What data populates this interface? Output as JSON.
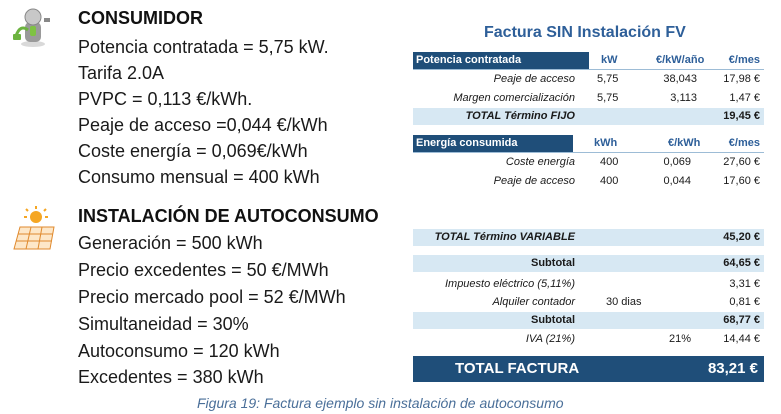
{
  "consumer": {
    "title": "CONSUMIDOR",
    "lines": [
      "Potencia contratada = 5,75 kW.",
      "Tarifa 2.0A",
      "PVPC = 0,113 €/kWh.",
      "Peaje de acceso =0,044 €/kWh",
      "Coste energía = 0,069€/kWh",
      "Consumo mensual = 400 kWh"
    ]
  },
  "autoconsumo": {
    "title": "INSTALACIÓN DE AUTOCONSUMO",
    "lines": [
      "Generación = 500 kWh",
      "Precio excedentes = 50 €/MWh",
      "Precio mercado pool = 52 €/MWh",
      "Simultaneidad = 30%",
      "Autoconsumo = 120 kWh",
      "Excedentes = 380 kWh"
    ]
  },
  "invoice": {
    "title": "Factura SIN Instalación FV",
    "fijo_header": {
      "label": "Potencia contratada",
      "c1": "kW",
      "c2": "€/kW/año",
      "c3": "€/mes"
    },
    "fijo_rows": [
      {
        "label": "Peaje de acceso",
        "c1": "5,75",
        "c2": "38,043",
        "c3": "17,98 €"
      },
      {
        "label": "Margen comercialización",
        "c1": "5,75",
        "c2": "3,113",
        "c3": "1,47 €"
      }
    ],
    "fijo_total": {
      "label": "TOTAL Término FIJO",
      "value": "19,45 €"
    },
    "energia_header": {
      "label": "Energía consumida",
      "c1": "kWh",
      "c2": "€/kWh",
      "c3": "€/mes"
    },
    "energia_rows": [
      {
        "label": "Coste energía",
        "c1": "400",
        "c2": "0,069",
        "c3": "27,60 €"
      },
      {
        "label": "Peaje de acceso",
        "c1": "400",
        "c2": "0,044",
        "c3": "17,60 €"
      }
    ],
    "variable_total": {
      "label": "TOTAL Término VARIABLE",
      "value": "45,20 €"
    },
    "subtotal1": {
      "label": "Subtotal",
      "value": "64,65 €"
    },
    "impuesto": {
      "label": "Impuesto eléctrico (5,11%)",
      "value": "3,31 €"
    },
    "alquiler": {
      "label": "Alquiler contador",
      "mid": "30 dias",
      "value": "0,81 €"
    },
    "subtotal2": {
      "label": "Subtotal",
      "value": "68,77 €"
    },
    "iva": {
      "label": "IVA (21%)",
      "mid": "21%",
      "value": "14,44 €"
    },
    "total": {
      "label": "TOTAL FACTURA",
      "value": "83,21 €"
    }
  },
  "caption": "Figura 19: Factura ejemplo sin instalación de autoconsumo",
  "colors": {
    "dark_blue": "#1f4e79",
    "light_blue": "#d7e8f3",
    "title_blue": "#2e5f99"
  }
}
